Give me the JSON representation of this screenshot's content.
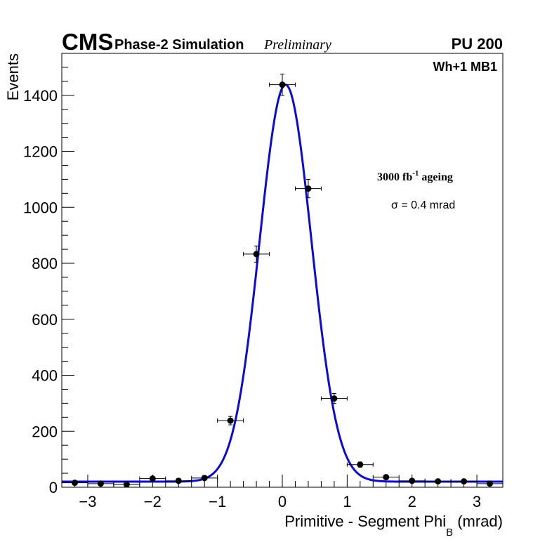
{
  "header": {
    "experiment": "CMS",
    "subtitle": "Phase-2 Simulation",
    "status": "Preliminary",
    "pileup": "PU 200"
  },
  "annotations": {
    "station": "Wh+1 MB1",
    "ageing_value": "3000 fb",
    "ageing_exp": "-1",
    "ageing_word": " ageing",
    "sigma": "σ = 0.4 mrad"
  },
  "colors": {
    "fit": "#0a0adc",
    "points": "#000000",
    "frame": "#000000"
  },
  "chart_data": {
    "type": "scatter",
    "title": "",
    "xlabel": "Primitive - Segment Phi",
    "xlabel_sub": "B",
    "xlabel_unit": " (mrad)",
    "ylabel": "Events",
    "xlim": [
      -3.4,
      3.4
    ],
    "ylim": [
      0,
      1550
    ],
    "x_ticks": [
      -3,
      -2,
      -1,
      0,
      1,
      2,
      3
    ],
    "x_tick_labels": [
      "−3",
      "−2",
      "−1",
      "0",
      "1",
      "2",
      "3"
    ],
    "y_ticks": [
      0,
      200,
      400,
      600,
      800,
      1000,
      1200,
      1400
    ],
    "y_tick_labels": [
      "0",
      "200",
      "400",
      "600",
      "800",
      "1000",
      "1200",
      "1400"
    ],
    "bin_half_width": 0.2,
    "series": [
      {
        "name": "data",
        "x": [
          -3.2,
          -2.8,
          -2.4,
          -2.0,
          -1.6,
          -1.2,
          -0.8,
          -0.4,
          0.0,
          0.4,
          0.8,
          1.2,
          1.6,
          2.0,
          2.4,
          2.8,
          3.2
        ],
        "y": [
          16,
          13,
          10,
          31,
          23,
          33,
          238,
          833,
          1438,
          1067,
          317,
          81,
          36,
          23,
          21,
          21,
          13
        ],
        "yerr": [
          4,
          4,
          3,
          6,
          5,
          6,
          15,
          29,
          38,
          33,
          18,
          9,
          6,
          5,
          5,
          5,
          4
        ]
      },
      {
        "name": "gaussian fit",
        "model": "gaussian_plus_constant",
        "amplitude": 1418,
        "mean": 0.05,
        "sigma": 0.4,
        "constant": 20
      }
    ]
  }
}
